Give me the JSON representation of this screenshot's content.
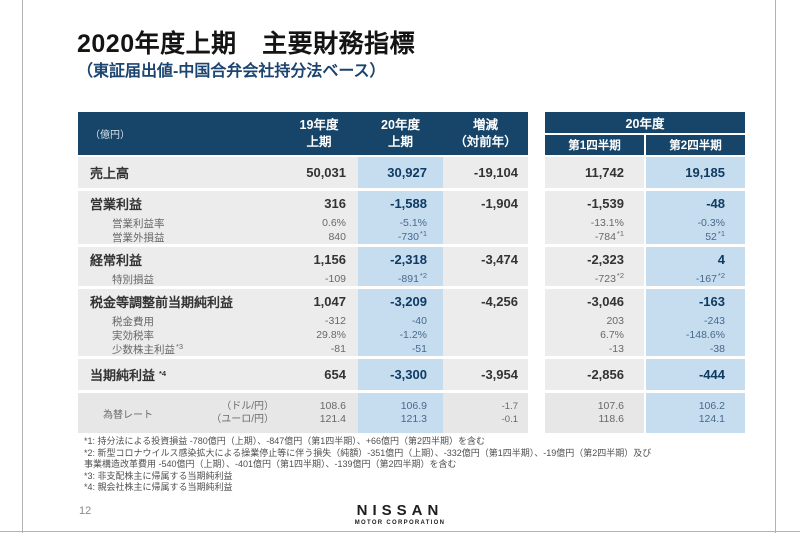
{
  "slide": {
    "title": "2020年度上期　主要財務指標",
    "subtitle": "（東証届出値-中国合弁会社持分法ベース）",
    "page_number": "12",
    "logo": {
      "name": "NISSAN",
      "sub": "MOTOR CORPORATION"
    }
  },
  "colors": {
    "header_bg": "#164569",
    "highlight_blue": "#c5ddef",
    "row_gray": "#ececec",
    "navy_text": "#0f3a62",
    "subtitle_navy": "#1b4470"
  },
  "main_table": {
    "unit": "（億円）",
    "columns": [
      {
        "line1": "19年度",
        "line2": "上期"
      },
      {
        "line1": "20年度",
        "line2": "上期"
      },
      {
        "line1": "増減",
        "line2": "（対前年）"
      }
    ]
  },
  "quarter_table": {
    "year": "20年度",
    "columns": [
      "第1四半期",
      "第2四半期"
    ]
  },
  "rows": [
    {
      "rows": [
        {
          "type": "main",
          "label": "売上高",
          "fy19": "50,031",
          "fy20": "30,927",
          "chg": "-19,104",
          "q1": "11,742",
          "q2": "19,185"
        }
      ]
    },
    {
      "rows": [
        {
          "type": "main",
          "label": "営業利益",
          "fy19": "316",
          "fy20": "-1,588",
          "chg": "-1,904",
          "q1": "-1,539",
          "q2": "-48"
        },
        {
          "type": "sub",
          "label": "営業利益率",
          "fy19": "0.6%",
          "fy20": "-5.1%",
          "chg": "",
          "q1": "-13.1%",
          "q2": "-0.3%"
        },
        {
          "type": "sub",
          "label": "営業外損益",
          "fy19": "840",
          "fy20": "-730",
          "fy20_sup": "*1",
          "chg": "",
          "q1": "-784",
          "q1_sup": "*1",
          "q2": "52",
          "q2_sup": "*1"
        }
      ]
    },
    {
      "rows": [
        {
          "type": "main",
          "label": "経常利益",
          "fy19": "1,156",
          "fy20": "-2,318",
          "chg": "-3,474",
          "q1": "-2,323",
          "q2": "4"
        },
        {
          "type": "sub",
          "label": "特別損益",
          "fy19": "-109",
          "fy20": "-891",
          "fy20_sup": "*2",
          "chg": "",
          "q1": "-723",
          "q1_sup": "*2",
          "q2": "-167",
          "q2_sup": "*2"
        }
      ]
    },
    {
      "rows": [
        {
          "type": "main",
          "label": "税金等調整前当期純利益",
          "fy19": "1,047",
          "fy20": "-3,209",
          "chg": "-4,256",
          "q1": "-3,046",
          "q2": "-163"
        },
        {
          "type": "sub",
          "label": "税金費用",
          "fy19": "-312",
          "fy20": "-40",
          "chg": "",
          "q1": "203",
          "q2": "-243"
        },
        {
          "type": "sub",
          "label": "実効税率",
          "fy19": "29.8%",
          "fy20": "-1.2%",
          "chg": "",
          "q1": "6.7%",
          "q2": "-148.6%"
        },
        {
          "type": "sub",
          "label": "少数株主利益",
          "label_sup": "*3",
          "fy19": "-81",
          "fy20": "-51",
          "chg": "",
          "q1": "-13",
          "q2": "-38"
        }
      ]
    },
    {
      "rows": [
        {
          "type": "main",
          "label": "当期純利益",
          "label_sup": "*4",
          "fy19": "654",
          "fy20": "-3,300",
          "chg": "-3,954",
          "q1": "-2,856",
          "q2": "-444"
        }
      ]
    },
    {
      "fx": true,
      "label": "為替レート",
      "lines": [
        {
          "currency": "（ドル/円）",
          "fy19": "108.6",
          "fy20": "106.9",
          "chg": "-1.7",
          "q1": "107.6",
          "q2": "106.2"
        },
        {
          "currency": "（ユーロ/円）",
          "fy19": "121.4",
          "fy20": "121.3",
          "chg": "-0.1",
          "q1": "118.6",
          "q2": "124.1"
        }
      ]
    }
  ],
  "footnotes": [
    "*1: 持分法による投資損益 -780億円（上期）、-847億円（第1四半期）、+66億円（第2四半期）を含む",
    "*2: 新型コロナウイルス感染拡大による操業停止等に伴う損失（純額）-351億円（上期）、-332億円（第1四半期）、-19億円（第2四半期）及び",
    "事業構造改革費用 -540億円（上期）、-401億円（第1四半期）、-139億円（第2四半期）を含む",
    "*3: 非支配株主に帰属する当期純利益",
    "*4: 親会社株主に帰属する当期純利益"
  ]
}
